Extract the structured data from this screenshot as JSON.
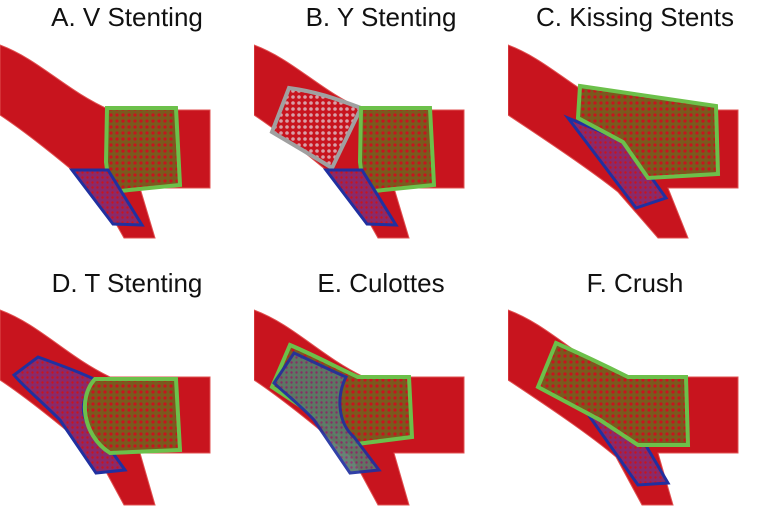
{
  "figure": {
    "panels": [
      {
        "id": "A",
        "title": "A. V Stenting",
        "technique": "v-stenting"
      },
      {
        "id": "B",
        "title": "B. Y Stenting",
        "technique": "y-stenting"
      },
      {
        "id": "C",
        "title": "C. Kissing Stents",
        "technique": "kissing-stents"
      },
      {
        "id": "D",
        "title": "D. T Stenting",
        "technique": "t-stenting"
      },
      {
        "id": "E",
        "title": "E. Culottes",
        "technique": "culottes"
      },
      {
        "id": "F",
        "title": "F. Crush",
        "technique": "crush"
      }
    ]
  },
  "colors": {
    "vessel": "#c8141e",
    "vessel_edge": "#e05050",
    "main_stent_fill": "#7a5a1e",
    "main_stent_dot": "#c8141e",
    "main_stent_border": "#6cc04a",
    "side_stent_fill": "#8a2a6a",
    "side_stent_dot": "#c8141e",
    "side_stent_border": "#2030a0",
    "proximal_stent_fill": "#d8a0a8",
    "proximal_stent_border": "#a0a0a0"
  }
}
